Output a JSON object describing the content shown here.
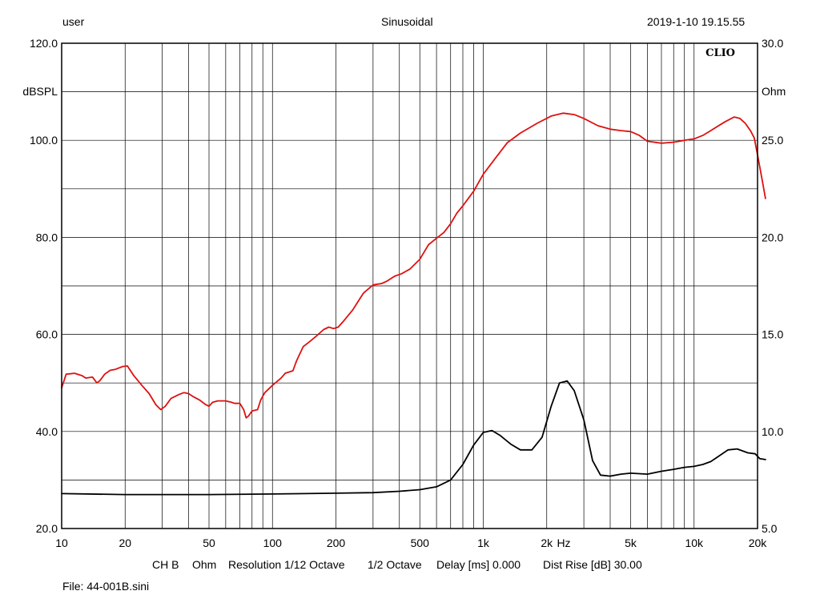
{
  "header": {
    "user": "user",
    "mode": "Sinusoidal",
    "datetime": "2019-1-10 19.15.55"
  },
  "chart_data": {
    "type": "line",
    "x_scale": "log",
    "xlim": [
      10,
      20000
    ],
    "ylim": [
      20,
      120
    ],
    "ylim_right": [
      5,
      30
    ],
    "grid": true,
    "left_unit": "dBSPL",
    "right_unit": "Ohm",
    "brand": "CLIO",
    "x_unit": "Hz",
    "x_ticks": [
      {
        "value": 10,
        "label": "10"
      },
      {
        "value": 20,
        "label": "20"
      },
      {
        "value": 50,
        "label": "50"
      },
      {
        "value": 100,
        "label": "100"
      },
      {
        "value": 200,
        "label": "200"
      },
      {
        "value": 500,
        "label": "500"
      },
      {
        "value": 1000,
        "label": "1k"
      },
      {
        "value": 2000,
        "label": "2k"
      },
      {
        "value": 5000,
        "label": "5k"
      },
      {
        "value": 10000,
        "label": "10k"
      },
      {
        "value": 20000,
        "label": "20k"
      }
    ],
    "y_ticks_left": [
      "120.0",
      "100.0",
      "80.0",
      "60.0",
      "40.0",
      "20.0"
    ],
    "y_ticks_right": [
      "30.0",
      "25.0",
      "20.0",
      "15.0",
      "10.0",
      "5.0"
    ],
    "series": [
      {
        "axis": "left",
        "color": "#dd1111",
        "points": [
          [
            10,
            49
          ],
          [
            10.5,
            51.8
          ],
          [
            11.5,
            52
          ],
          [
            12.5,
            51.5
          ],
          [
            13,
            51
          ],
          [
            14,
            51.2
          ],
          [
            14.7,
            50
          ],
          [
            15.2,
            50.5
          ],
          [
            16,
            51.8
          ],
          [
            17,
            52.6
          ],
          [
            18,
            52.8
          ],
          [
            19.5,
            53.4
          ],
          [
            20.5,
            53.5
          ],
          [
            22,
            51.5
          ],
          [
            24,
            49.5
          ],
          [
            26,
            47.8
          ],
          [
            28,
            45.5
          ],
          [
            29.5,
            44.5
          ],
          [
            31,
            45.2
          ],
          [
            33,
            46.8
          ],
          [
            36,
            47.6
          ],
          [
            38,
            48
          ],
          [
            40,
            47.8
          ],
          [
            42,
            47.2
          ],
          [
            45,
            46.5
          ],
          [
            48,
            45.6
          ],
          [
            50,
            45.2
          ],
          [
            52,
            46
          ],
          [
            55,
            46.3
          ],
          [
            60,
            46.3
          ],
          [
            64,
            46
          ],
          [
            66,
            45.8
          ],
          [
            70,
            45.8
          ],
          [
            73,
            44.5
          ],
          [
            75,
            42.8
          ],
          [
            77,
            43.2
          ],
          [
            80,
            44.2
          ],
          [
            85,
            44.5
          ],
          [
            88,
            46.5
          ],
          [
            92,
            48
          ],
          [
            100,
            49.5
          ],
          [
            110,
            51
          ],
          [
            115,
            52
          ],
          [
            125,
            52.5
          ],
          [
            130,
            54.5
          ],
          [
            140,
            57.5
          ],
          [
            150,
            58.5
          ],
          [
            160,
            59.5
          ],
          [
            175,
            61
          ],
          [
            185,
            61.5
          ],
          [
            195,
            61.2
          ],
          [
            205,
            61.5
          ],
          [
            215,
            62.5
          ],
          [
            240,
            65
          ],
          [
            270,
            68.5
          ],
          [
            300,
            70.2
          ],
          [
            330,
            70.5
          ],
          [
            350,
            71
          ],
          [
            380,
            72
          ],
          [
            410,
            72.5
          ],
          [
            450,
            73.5
          ],
          [
            500,
            75.5
          ],
          [
            550,
            78.5
          ],
          [
            600,
            79.8
          ],
          [
            650,
            81
          ],
          [
            700,
            82.8
          ],
          [
            750,
            85
          ],
          [
            800,
            86.5
          ],
          [
            900,
            89.5
          ],
          [
            1000,
            93
          ],
          [
            1150,
            96.5
          ],
          [
            1300,
            99.5
          ],
          [
            1500,
            101.5
          ],
          [
            1800,
            103.5
          ],
          [
            2100,
            105
          ],
          [
            2400,
            105.6
          ],
          [
            2700,
            105.3
          ],
          [
            3000,
            104.5
          ],
          [
            3500,
            103
          ],
          [
            4000,
            102.3
          ],
          [
            4500,
            102
          ],
          [
            5000,
            101.8
          ],
          [
            5500,
            101
          ],
          [
            6000,
            99.8
          ],
          [
            7000,
            99.4
          ],
          [
            8000,
            99.6
          ],
          [
            9000,
            100
          ],
          [
            10000,
            100.3
          ],
          [
            11000,
            101
          ],
          [
            12000,
            102
          ],
          [
            14000,
            103.8
          ],
          [
            15500,
            104.8
          ],
          [
            16500,
            104.5
          ],
          [
            17500,
            103.5
          ],
          [
            18500,
            102
          ],
          [
            19300,
            100.5
          ],
          [
            20000,
            97
          ],
          [
            21000,
            92
          ],
          [
            21800,
            88
          ]
        ]
      },
      {
        "axis": "right",
        "color": "#000000",
        "points": [
          [
            10,
            6.8
          ],
          [
            20,
            6.75
          ],
          [
            50,
            6.75
          ],
          [
            100,
            6.78
          ],
          [
            200,
            6.82
          ],
          [
            300,
            6.85
          ],
          [
            400,
            6.92
          ],
          [
            500,
            7
          ],
          [
            600,
            7.15
          ],
          [
            700,
            7.5
          ],
          [
            800,
            8.3
          ],
          [
            900,
            9.3
          ],
          [
            1000,
            9.95
          ],
          [
            1100,
            10.05
          ],
          [
            1200,
            9.8
          ],
          [
            1350,
            9.35
          ],
          [
            1500,
            9.05
          ],
          [
            1700,
            9.05
          ],
          [
            1900,
            9.7
          ],
          [
            2100,
            11.3
          ],
          [
            2300,
            12.5
          ],
          [
            2500,
            12.6
          ],
          [
            2700,
            12.1
          ],
          [
            3000,
            10.6
          ],
          [
            3300,
            8.5
          ],
          [
            3600,
            7.75
          ],
          [
            4000,
            7.7
          ],
          [
            4500,
            7.8
          ],
          [
            5000,
            7.85
          ],
          [
            6000,
            7.8
          ],
          [
            7000,
            7.95
          ],
          [
            8000,
            8.05
          ],
          [
            9000,
            8.15
          ],
          [
            10000,
            8.2
          ],
          [
            11000,
            8.3
          ],
          [
            12000,
            8.45
          ],
          [
            13000,
            8.7
          ],
          [
            14500,
            9.05
          ],
          [
            16000,
            9.1
          ],
          [
            18000,
            8.9
          ],
          [
            19500,
            8.85
          ],
          [
            20500,
            8.6
          ],
          [
            21800,
            8.55
          ]
        ]
      }
    ]
  },
  "footer": {
    "channel": "CH B",
    "unit": "Ohm",
    "resolution": "Resolution 1/12 Octave",
    "smoothing": "1/2 Octave",
    "delay": "Delay [ms] 0.000",
    "dist_rise": "Dist Rise [dB] 30.00",
    "file": "File: 44-001B.sini"
  }
}
